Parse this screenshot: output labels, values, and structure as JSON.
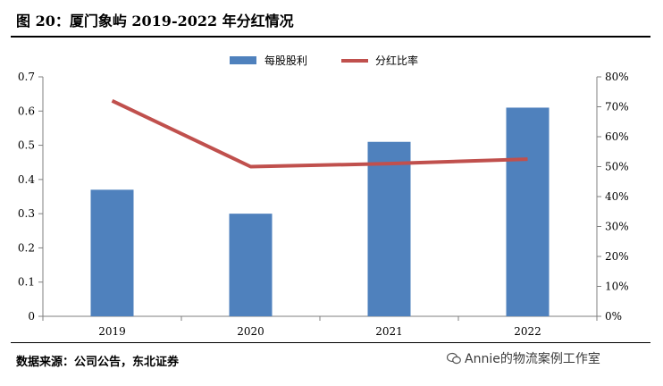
{
  "header": {
    "title": "图 20：厦门象屿 2019-2022 年分红情况"
  },
  "footer": {
    "source": "数据来源：公司公告，东北证券",
    "watermark": "Annie的物流案例工作室"
  },
  "colors": {
    "bar": "#4f81bd",
    "line": "#c0504d",
    "axis": "#7f7f7f"
  },
  "chart_data": {
    "type": "bar",
    "categories": [
      "2019",
      "2020",
      "2021",
      "2022"
    ],
    "series": [
      {
        "name": "每股股利",
        "type": "bar",
        "axis": "left",
        "values": [
          0.37,
          0.3,
          0.51,
          0.61
        ]
      },
      {
        "name": "分红比率",
        "type": "line",
        "axis": "right",
        "values": [
          0.72,
          0.5,
          0.51,
          0.525
        ]
      }
    ],
    "y_left": {
      "min": 0,
      "max": 0.7,
      "ticks": [
        "0",
        "0.1",
        "0.2",
        "0.3",
        "0.4",
        "0.5",
        "0.6",
        "0.7"
      ]
    },
    "y_right": {
      "min": 0,
      "max": 0.8,
      "ticks": [
        "0%",
        "10%",
        "20%",
        "30%",
        "40%",
        "50%",
        "60%",
        "70%",
        "80%"
      ]
    },
    "legend_position": "top-center",
    "grid": false
  }
}
